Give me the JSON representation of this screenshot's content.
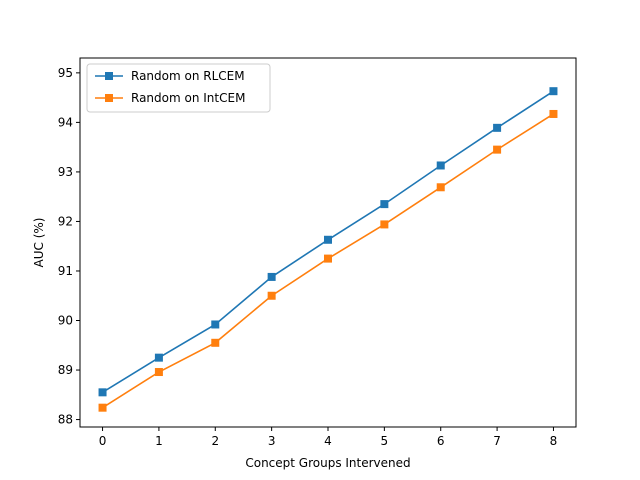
{
  "chart_data": {
    "type": "line",
    "title": "",
    "xlabel": "Concept Groups Intervened",
    "ylabel": "AUC (%)",
    "x": [
      0,
      1,
      2,
      3,
      4,
      5,
      6,
      7,
      8
    ],
    "xticks": [
      0,
      1,
      2,
      3,
      4,
      5,
      6,
      7,
      8
    ],
    "yticks": [
      88,
      89,
      90,
      91,
      92,
      93,
      94,
      95
    ],
    "xlim": [
      -0.4,
      8.4
    ],
    "ylim": [
      87.85,
      95.3
    ],
    "grid": false,
    "legend_position": "top-left",
    "series": [
      {
        "name": "Random on RLCEM",
        "color": "#1f77b4",
        "marker": "square",
        "values": [
          88.55,
          89.25,
          89.92,
          90.88,
          91.63,
          92.35,
          93.13,
          93.89,
          94.63
        ]
      },
      {
        "name": "Random on IntCEM",
        "color": "#ff7f0e",
        "marker": "square",
        "values": [
          88.24,
          88.96,
          89.55,
          90.5,
          91.25,
          91.94,
          92.69,
          93.45,
          94.17
        ]
      }
    ]
  }
}
